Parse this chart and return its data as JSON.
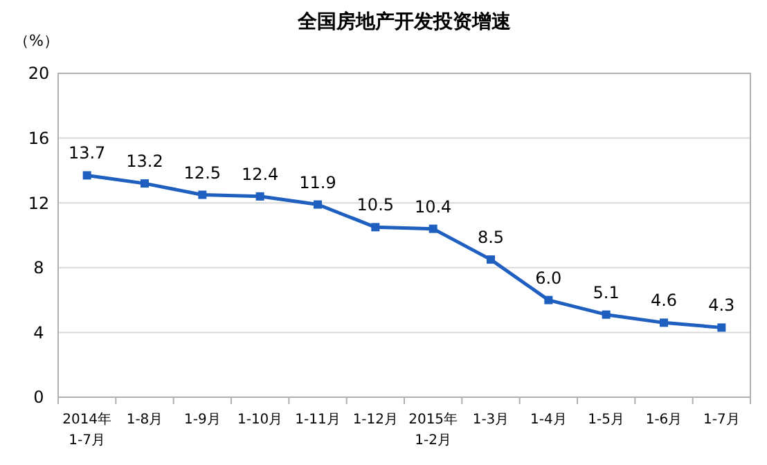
{
  "chart_data": {
    "type": "line",
    "title": "全国房地产开发投资增速",
    "ylabel": "（%）",
    "categories": [
      "2014年\n1-7月",
      "1-8月",
      "1-9月",
      "1-10月",
      "1-11月",
      "1-12月",
      "2015年\n1-2月",
      "1-3月",
      "1-4月",
      "1-5月",
      "1-6月",
      "1-7月"
    ],
    "series": [
      {
        "color": "#1f5fbf",
        "values": [
          13.7,
          13.2,
          12.5,
          12.4,
          11.9,
          10.5,
          10.4,
          8.5,
          6.0,
          5.1,
          4.6,
          4.3
        ],
        "value_labels": [
          "13.7",
          "13.2",
          "12.5",
          "12.4",
          "11.9",
          "10.5",
          "10.4",
          "8.5",
          "6.0",
          "5.1",
          "4.6",
          "4.3"
        ]
      }
    ],
    "ylim": [
      0,
      20
    ],
    "yticks": [
      0,
      4,
      8,
      12,
      16,
      20
    ],
    "grid": "y",
    "marker": "square",
    "line_style": "solid"
  }
}
